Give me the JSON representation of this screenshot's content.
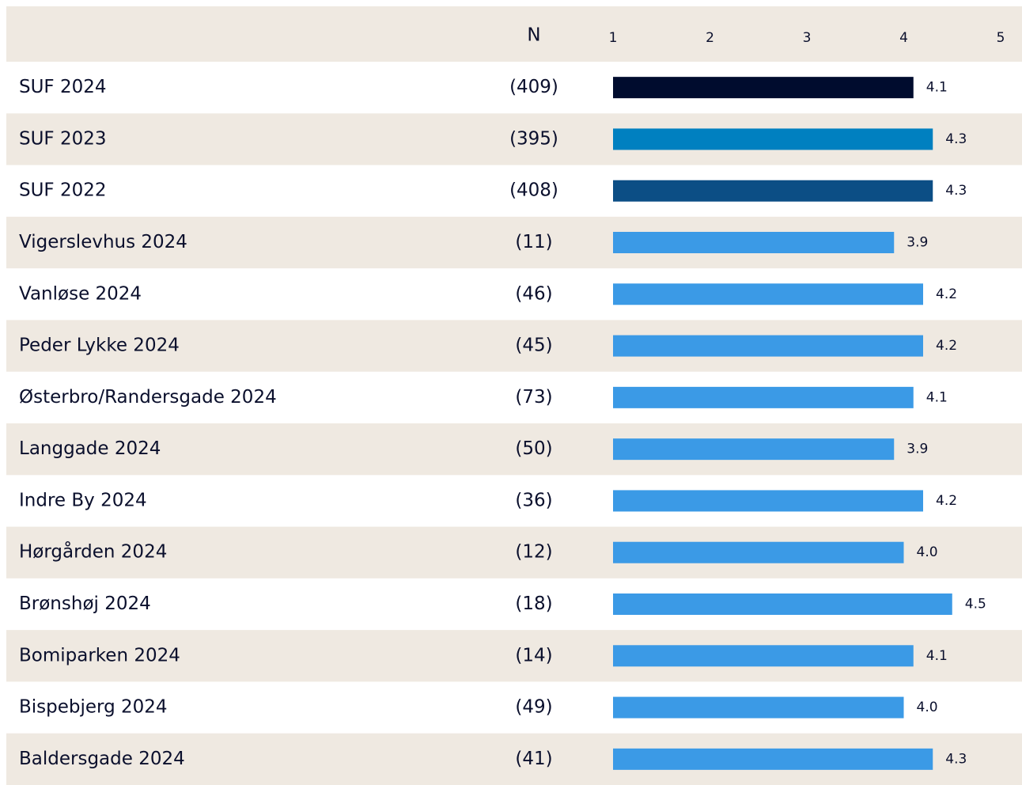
{
  "chart_data": {
    "type": "bar",
    "orientation": "horizontal",
    "n_header": "N",
    "categories": [
      "SUF 2024",
      "SUF 2023",
      "SUF 2022",
      "Vigerslevhus 2024",
      "Vanløse 2024",
      "Peder Lykke 2024",
      "Østerbro/Randersgade 2024",
      "Langgade 2024",
      "Indre By 2024",
      "Hørgården 2024",
      "Brønshøj 2024",
      "Bomiparken 2024",
      "Bispebjerg 2024",
      "Baldersgade 2024"
    ],
    "n": [
      "(409)",
      "(395)",
      "(408)",
      "(11)",
      "(46)",
      "(45)",
      "(73)",
      "(50)",
      "(36)",
      "(12)",
      "(18)",
      "(14)",
      "(49)",
      "(41)"
    ],
    "values": [
      4.1,
      4.3,
      4.3,
      3.9,
      4.2,
      4.2,
      4.1,
      3.9,
      4.2,
      4.0,
      4.5,
      4.1,
      4.0,
      4.3
    ],
    "value_labels": [
      "4.1",
      "4.3",
      "4.3",
      "3.9",
      "4.2",
      "4.2",
      "4.1",
      "3.9",
      "4.2",
      "4.0",
      "4.5",
      "4.1",
      "4.0",
      "4.3"
    ],
    "colors": [
      "#000c2e",
      "#0080c0",
      "#0c4e85",
      "#3b9ae6",
      "#3b9ae6",
      "#3b9ae6",
      "#3b9ae6",
      "#3b9ae6",
      "#3b9ae6",
      "#3b9ae6",
      "#3b9ae6",
      "#3b9ae6",
      "#3b9ae6",
      "#3b9ae6"
    ],
    "xlim": [
      1,
      5
    ],
    "xticks": [
      1,
      2,
      3,
      4,
      5
    ]
  }
}
